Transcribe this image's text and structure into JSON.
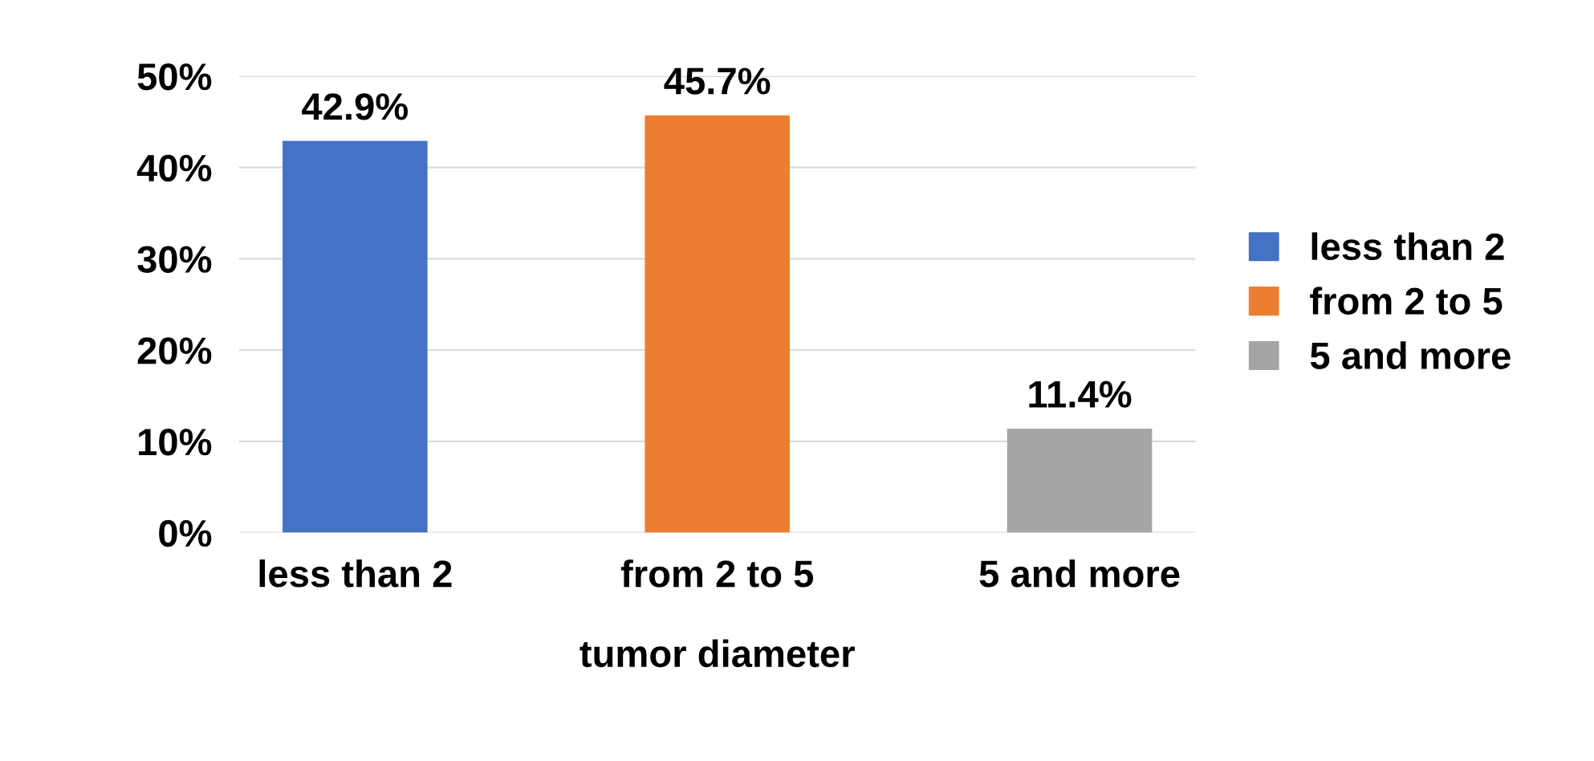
{
  "chart_data": {
    "type": "bar",
    "xlabel": "tumor diameter",
    "categories": [
      "less than 2",
      "from 2 to 5",
      "5 and more"
    ],
    "series": [
      {
        "name": "less than 2",
        "color": "#4472c4",
        "values": [
          42.9,
          null,
          null
        ],
        "value_labels": [
          "42.9%",
          null,
          null
        ]
      },
      {
        "name": "from 2 to 5",
        "color": "#ed7d31",
        "values": [
          null,
          45.7,
          null
        ],
        "value_labels": [
          null,
          "45.7%",
          null
        ]
      },
      {
        "name": "5 and more",
        "color": "#a5a5a5",
        "values": [
          null,
          null,
          11.4
        ],
        "value_labels": [
          null,
          null,
          "11.4%"
        ]
      }
    ],
    "ylim": [
      0,
      50
    ],
    "yticks": [
      {
        "value": 0,
        "label": "0%"
      },
      {
        "value": 10,
        "label": "10%"
      },
      {
        "value": 20,
        "label": "20%"
      },
      {
        "value": 30,
        "label": "30%"
      },
      {
        "value": 40,
        "label": "40%"
      },
      {
        "value": 50,
        "label": "50%"
      }
    ],
    "grid": "y",
    "legend": "right"
  }
}
